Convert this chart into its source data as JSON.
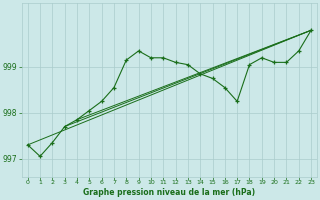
{
  "title": "Graphe pression niveau de la mer (hPa)",
  "bg_color": "#cce8e8",
  "line_color": "#1a6e1a",
  "grid_color": "#aacccc",
  "xlim": [
    -0.5,
    23.5
  ],
  "ylim": [
    996.6,
    1000.4
  ],
  "yticks": [
    997,
    998,
    999
  ],
  "xticks": [
    0,
    1,
    2,
    3,
    4,
    5,
    6,
    7,
    8,
    9,
    10,
    11,
    12,
    13,
    14,
    15,
    16,
    17,
    18,
    19,
    20,
    21,
    22,
    23
  ],
  "series1": [
    997.3,
    997.05,
    997.35,
    997.7,
    997.85,
    998.05,
    998.25,
    998.55,
    999.15,
    999.35,
    999.2,
    999.2,
    999.1,
    999.05,
    998.85,
    998.75,
    998.55,
    998.25,
    999.05,
    999.2,
    999.1,
    999.1,
    999.35,
    999.8
  ],
  "line2_pts": [
    [
      0,
      997.3
    ],
    [
      23,
      999.8
    ]
  ],
  "line3_pts": [
    [
      3,
      997.7
    ],
    [
      23,
      999.8
    ]
  ],
  "line4_pts": [
    [
      4,
      997.85
    ],
    [
      23,
      999.8
    ]
  ],
  "line5_pts": [
    [
      0,
      997.3
    ],
    [
      10,
      999.25
    ],
    [
      15,
      998.75
    ],
    [
      23,
      999.8
    ]
  ]
}
